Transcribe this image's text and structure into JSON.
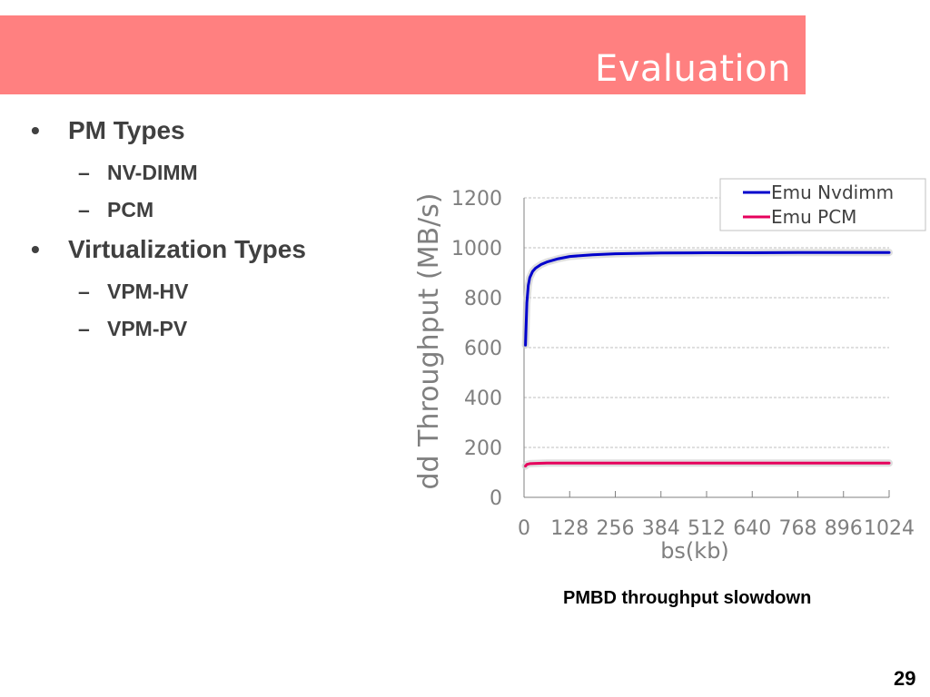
{
  "slide": {
    "title": "Evaluation",
    "page_number": "29"
  },
  "bullets": [
    {
      "label": "PM Types",
      "children": [
        "NV-DIMM",
        "PCM"
      ]
    },
    {
      "label": "Virtualization Types",
      "children": [
        "VPM-HV",
        "VPM-PV"
      ]
    }
  ],
  "bullet_glyph": "•",
  "sub_glyph": "–",
  "chart_caption": "PMBD throughput slowdown",
  "chart_data": {
    "type": "line",
    "xlabel": "bs(kb)",
    "ylabel": "dd Throughput (MB/s)",
    "xlim": [
      0,
      1024
    ],
    "ylim": [
      0,
      1200
    ],
    "x_ticks": [
      "0",
      "128",
      "256",
      "384",
      "512",
      "640",
      "768",
      "896",
      "1024"
    ],
    "y_ticks": [
      "0",
      "200",
      "400",
      "600",
      "800",
      "1000",
      "1200"
    ],
    "grid": "horizontal-dashed",
    "legend_position": "top-right",
    "series": [
      {
        "name": "Emu Nvdimm",
        "color": "#0000cc",
        "x": [
          4,
          8,
          12,
          16,
          24,
          32,
          48,
          64,
          96,
          128,
          192,
          256,
          384,
          512,
          640,
          768,
          896,
          1024
        ],
        "y": [
          610,
          780,
          850,
          880,
          905,
          918,
          933,
          943,
          956,
          965,
          972,
          976,
          979,
          980,
          980,
          981,
          981,
          981
        ]
      },
      {
        "name": "Emu PCM",
        "color": "#e6005c",
        "x": [
          4,
          8,
          16,
          32,
          64,
          128,
          256,
          384,
          512,
          640,
          768,
          896,
          1024
        ],
        "y": [
          125,
          132,
          135,
          136,
          137,
          137,
          137,
          137,
          137,
          137,
          137,
          137,
          137
        ]
      }
    ]
  }
}
